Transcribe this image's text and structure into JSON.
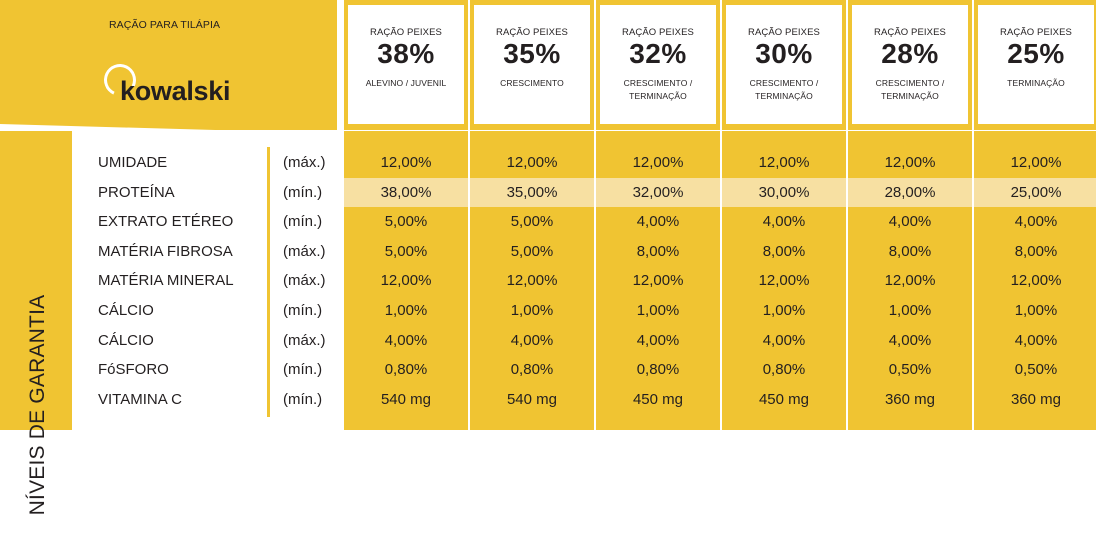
{
  "header": {
    "product_title": "RAÇÃO PARA TILÁPIA",
    "logo_text": "kowalski"
  },
  "side_label": "NÍVEIS DE GARANTIA",
  "rows": [
    {
      "name": "UMIDADE",
      "unit": "(máx.)"
    },
    {
      "name": "PROTEÍNA",
      "unit": "(mín.)"
    },
    {
      "name": "EXTRATO ETÉREO",
      "unit": "(mín.)"
    },
    {
      "name": "MATÉRIA FIBROSA",
      "unit": "(máx.)"
    },
    {
      "name": "MATÉRIA MINERAL",
      "unit": "(máx.)"
    },
    {
      "name": "CÁLCIO",
      "unit": "(mín.)"
    },
    {
      "name": "CÁLCIO",
      "unit": "(máx.)"
    },
    {
      "name": "FóSFORO",
      "unit": "(mín.)"
    },
    {
      "name": "VITAMINA C",
      "unit": "(mín.)"
    }
  ],
  "products": [
    {
      "prefix": "RAÇÃO PEIXES",
      "percent": "38%",
      "sub1": "ALEVINO / JUVENIL",
      "sub2": "",
      "values": [
        "12,00%",
        "38,00%",
        "5,00%",
        "5,00%",
        "12,00%",
        "1,00%",
        "4,00%",
        "0,80%",
        "540 mg"
      ]
    },
    {
      "prefix": "RAÇÃO PEIXES",
      "percent": "35%",
      "sub1": "CRESCIMENTO",
      "sub2": "",
      "values": [
        "12,00%",
        "35,00%",
        "5,00%",
        "5,00%",
        "12,00%",
        "1,00%",
        "4,00%",
        "0,80%",
        "540 mg"
      ]
    },
    {
      "prefix": "RAÇÃO PEIXES",
      "percent": "32%",
      "sub1": "CRESCIMENTO /",
      "sub2": "TERMINAÇÃO",
      "values": [
        "12,00%",
        "32,00%",
        "4,00%",
        "8,00%",
        "12,00%",
        "1,00%",
        "4,00%",
        "0,80%",
        "450 mg"
      ]
    },
    {
      "prefix": "RAÇÃO PEIXES",
      "percent": "30%",
      "sub1": "CRESCIMENTO /",
      "sub2": "TERMINAÇÃO",
      "values": [
        "12,00%",
        "30,00%",
        "4,00%",
        "8,00%",
        "12,00%",
        "1,00%",
        "4,00%",
        "0,80%",
        "450 mg"
      ]
    },
    {
      "prefix": "RAÇÃO PEIXES",
      "percent": "28%",
      "sub1": "CRESCIMENTO /",
      "sub2": "TERMINAÇÃO",
      "values": [
        "12,00%",
        "28,00%",
        "4,00%",
        "8,00%",
        "12,00%",
        "1,00%",
        "4,00%",
        "0,50%",
        "360 mg"
      ]
    },
    {
      "prefix": "RAÇÃO PEIXES",
      "percent": "25%",
      "sub1": "TERMINAÇÃO",
      "sub2": "",
      "values": [
        "12,00%",
        "25,00%",
        "4,00%",
        "8,00%",
        "12,00%",
        "1,00%",
        "4,00%",
        "0,50%",
        "360 mg"
      ]
    }
  ],
  "highlighted_row": 1,
  "colors": {
    "accent": "#f0c432",
    "highlight": "#f7e0a2",
    "text": "#231f20"
  }
}
